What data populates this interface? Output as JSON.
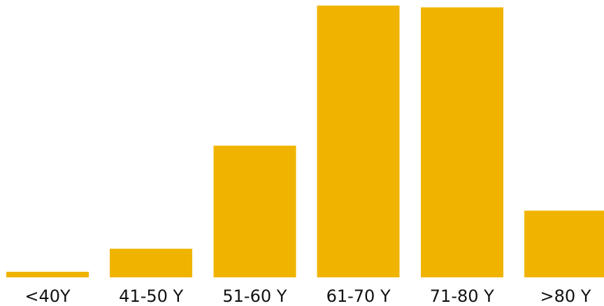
{
  "chart_data": {
    "type": "bar",
    "categories": [
      "<40Y",
      "41-50 Y",
      "51-60 Y",
      "61-70 Y",
      "71-80 Y",
      ">80 Y"
    ],
    "values": [
      2,
      10.5,
      48.5,
      100,
      99.3,
      24.5
    ],
    "title": "",
    "xlabel": "",
    "ylabel": "",
    "ylim": [
      0,
      100
    ],
    "grid": false,
    "bar_color": "#F0B400"
  }
}
